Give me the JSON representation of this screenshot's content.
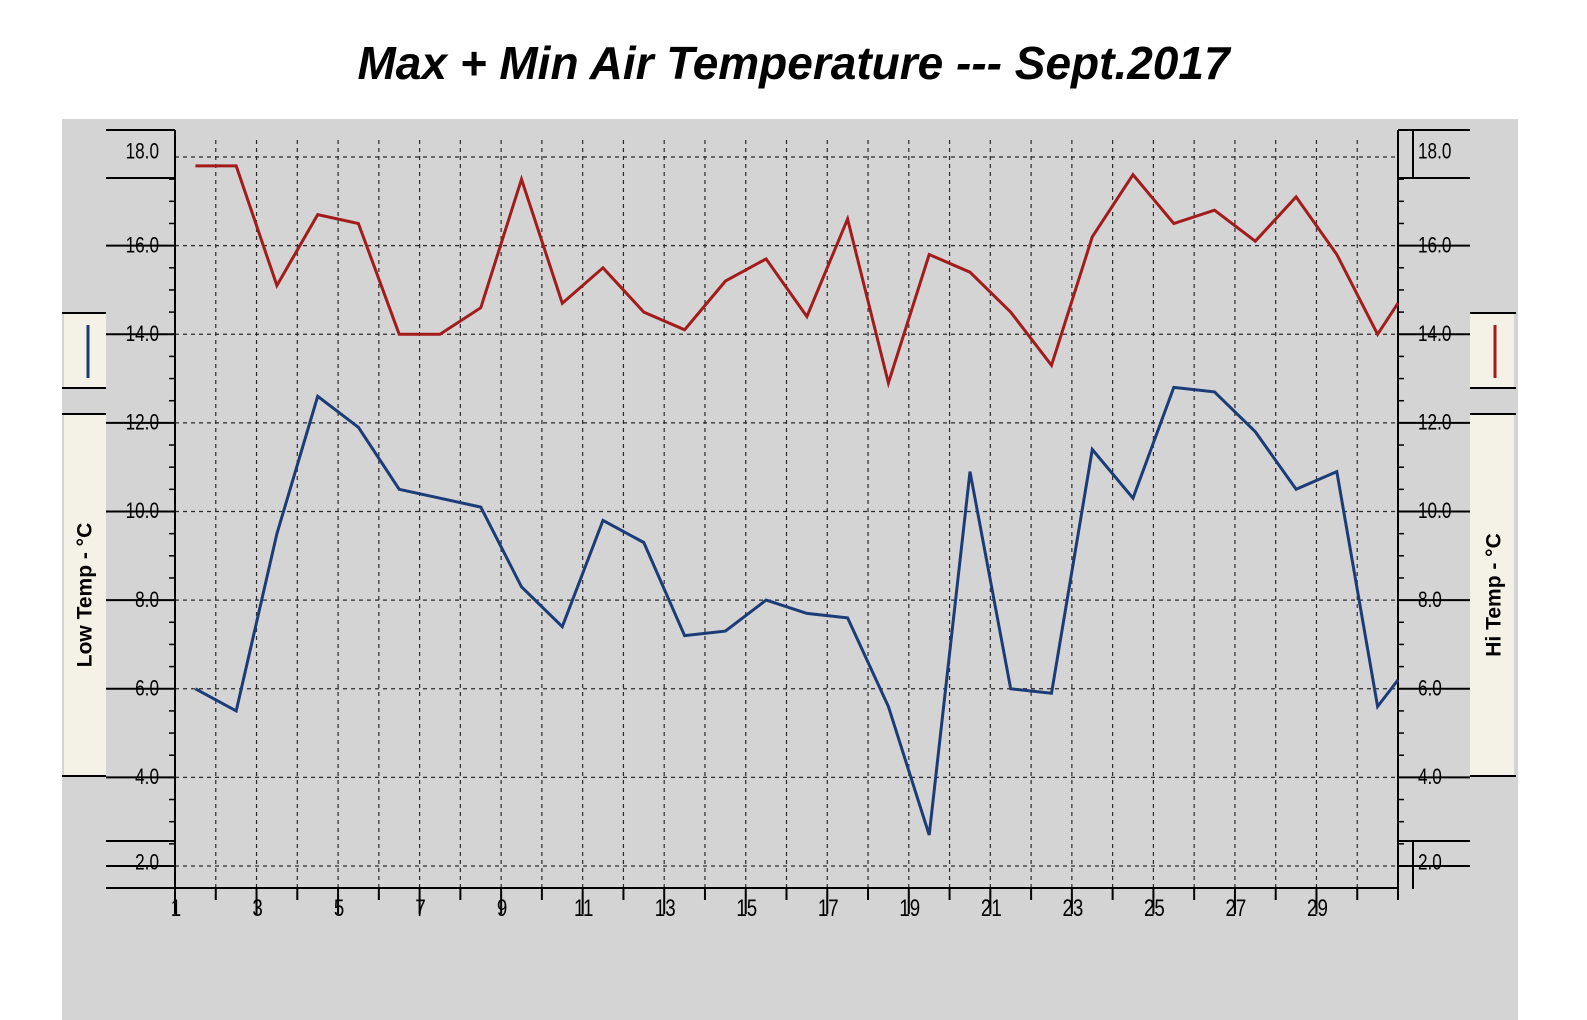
{
  "chart_data": {
    "type": "line",
    "title": "Max + Min Air Temperature --- Sept.2017",
    "ylabel_left": "Low Temp - °C",
    "ylabel_right": "Hi Temp - °C",
    "xlabel": "",
    "x_ticks": [
      1,
      3,
      5,
      7,
      9,
      11,
      13,
      15,
      17,
      19,
      21,
      23,
      25,
      27,
      29
    ],
    "y_ticks": [
      2.0,
      4.0,
      6.0,
      8.0,
      10.0,
      12.0,
      14.0,
      16.0,
      18.0
    ],
    "xlim": [
      1,
      31
    ],
    "ylim": [
      1.5,
      18.2
    ],
    "grid": true,
    "series": [
      {
        "name": "",
        "color": "#a31c1c",
        "axis": "right",
        "points": [
          [
            1.5,
            17.8
          ],
          [
            2.0,
            17.8
          ],
          [
            2.5,
            17.8
          ],
          [
            3.5,
            15.1
          ],
          [
            4.5,
            16.7
          ],
          [
            5.5,
            16.5
          ],
          [
            6.5,
            14.0
          ],
          [
            7.5,
            14.0
          ],
          [
            8.5,
            14.6
          ],
          [
            9.5,
            17.5
          ],
          [
            10.5,
            14.7
          ],
          [
            11.5,
            15.5
          ],
          [
            12.5,
            14.5
          ],
          [
            13.5,
            14.1
          ],
          [
            14.5,
            15.2
          ],
          [
            15.5,
            15.7
          ],
          [
            16.5,
            14.4
          ],
          [
            17.5,
            16.6
          ],
          [
            18.5,
            12.9
          ],
          [
            19.5,
            15.8
          ],
          [
            20.5,
            15.4
          ],
          [
            21.5,
            14.5
          ],
          [
            22.5,
            13.3
          ],
          [
            23.5,
            16.2
          ],
          [
            24.5,
            17.6
          ],
          [
            25.5,
            16.5
          ],
          [
            26.5,
            16.8
          ],
          [
            27.5,
            16.1
          ],
          [
            28.5,
            17.1
          ],
          [
            29.5,
            15.8
          ],
          [
            30.5,
            14.0
          ],
          [
            31.0,
            14.7
          ]
        ]
      },
      {
        "name": "",
        "color": "#1c3c78",
        "axis": "left",
        "points": [
          [
            1.5,
            6.0
          ],
          [
            2.5,
            5.5
          ],
          [
            3.5,
            9.5
          ],
          [
            4.5,
            12.6
          ],
          [
            5.5,
            11.9
          ],
          [
            6.5,
            10.5
          ],
          [
            7.5,
            10.3
          ],
          [
            8.5,
            10.1
          ],
          [
            9.5,
            8.3
          ],
          [
            10.5,
            7.4
          ],
          [
            11.5,
            9.8
          ],
          [
            12.5,
            9.3
          ],
          [
            13.5,
            7.2
          ],
          [
            14.5,
            7.3
          ],
          [
            15.5,
            8.0
          ],
          [
            16.5,
            7.7
          ],
          [
            17.5,
            7.6
          ],
          [
            18.5,
            5.6
          ],
          [
            19.5,
            2.7
          ],
          [
            20.5,
            10.9
          ],
          [
            21.5,
            6.0
          ],
          [
            22.5,
            5.9
          ],
          [
            23.5,
            11.4
          ],
          [
            24.5,
            10.3
          ],
          [
            25.5,
            12.8
          ],
          [
            26.5,
            12.7
          ],
          [
            27.5,
            11.8
          ],
          [
            28.5,
            10.5
          ],
          [
            29.5,
            10.9
          ],
          [
            30.5,
            5.6
          ],
          [
            31.0,
            6.2
          ]
        ]
      }
    ]
  }
}
